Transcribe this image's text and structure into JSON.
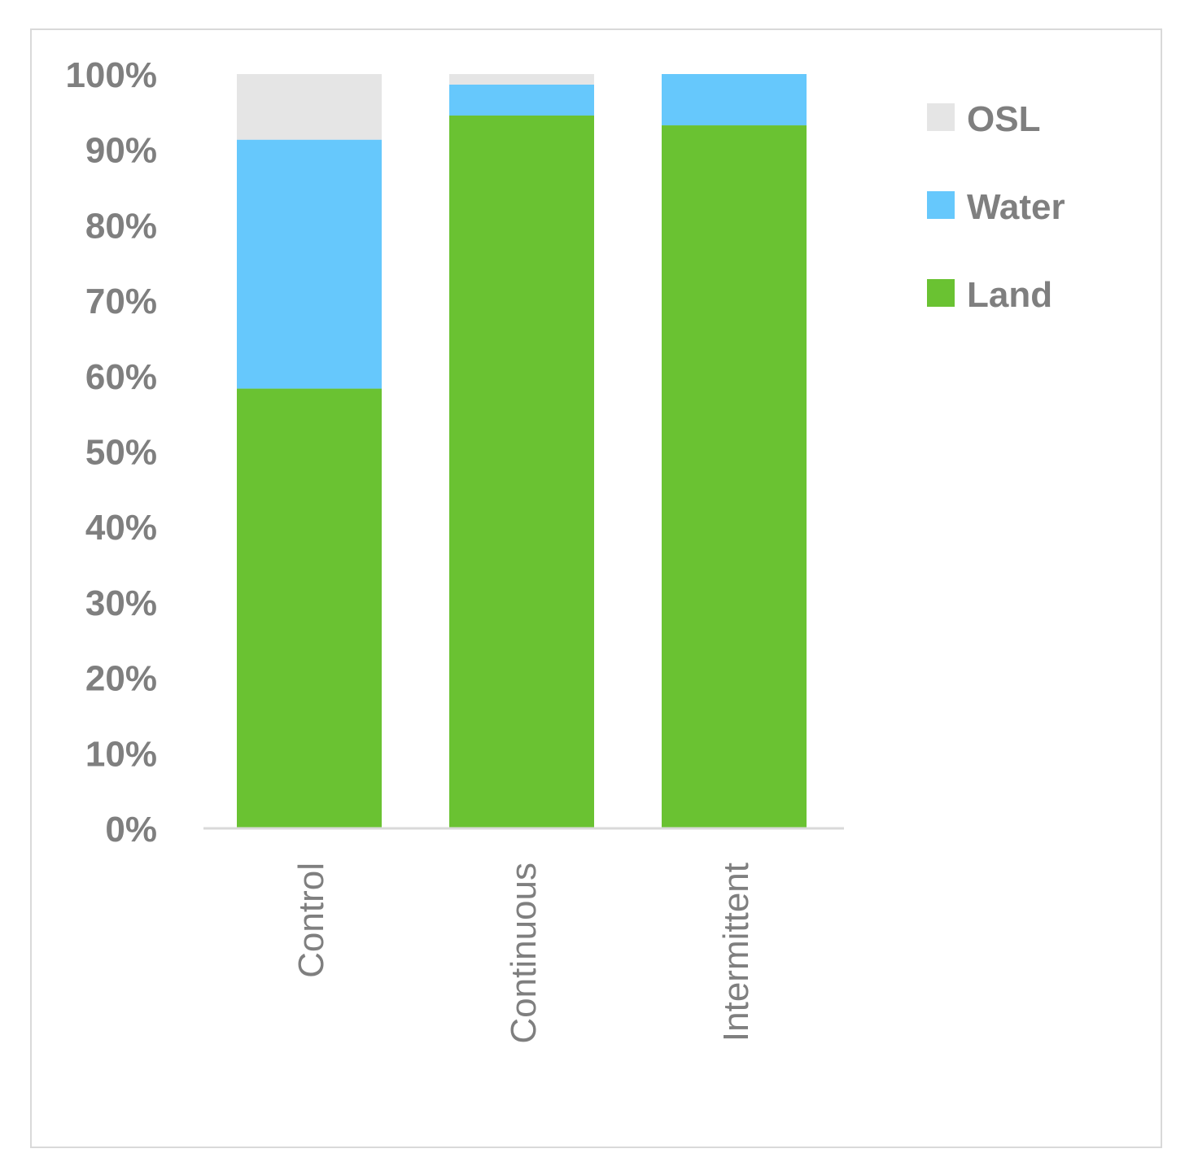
{
  "chart_data": {
    "type": "bar",
    "stacked": true,
    "categories": [
      "Control",
      "Continuous",
      "Intermittent"
    ],
    "series": [
      {
        "name": "Land",
        "color": "#6ac232",
        "values": [
          58.3,
          94.5,
          93.2
        ]
      },
      {
        "name": "Water",
        "color": "#66c8fc",
        "values": [
          33.0,
          4.1,
          6.8
        ]
      },
      {
        "name": "OSL",
        "color": "#e5e5e5",
        "values": [
          8.7,
          1.4,
          0.0
        ]
      }
    ],
    "y_ticks": [
      "0%",
      "10%",
      "20%",
      "30%",
      "40%",
      "50%",
      "60%",
      "70%",
      "80%",
      "90%",
      "100%"
    ],
    "ylim": [
      0,
      100
    ],
    "legend": {
      "placement": "right",
      "order": [
        "OSL",
        "Water",
        "Land"
      ]
    },
    "grid": false
  }
}
